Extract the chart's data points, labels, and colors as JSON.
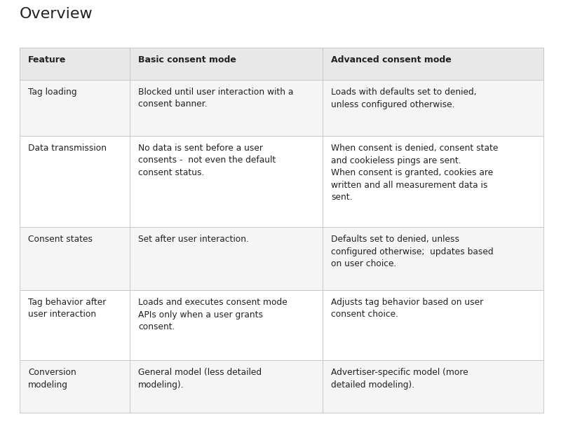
{
  "title": "Overview",
  "title_fontsize": 16,
  "background_color": "#ffffff",
  "header_bg": "#e8e8e8",
  "row_bg_odd": "#f5f5f5",
  "row_bg_even": "#ffffff",
  "border_color": "#c8c8c8",
  "text_color": "#222222",
  "header_fontsize": 9,
  "cell_fontsize": 8.8,
  "headers": [
    "Feature",
    "Basic consent mode",
    "Advanced consent mode"
  ],
  "rows": [
    {
      "feature": "Tag loading",
      "basic": "Blocked until user interaction with a\nconsent banner.",
      "advanced": "Loads with defaults set to denied,\nunless configured otherwise."
    },
    {
      "feature": "Data transmission",
      "basic": "No data is sent before a user\nconsents -  not even the default\nconsent status.",
      "advanced": "When consent is denied, consent state\nand cookieless pings are sent.\nWhen consent is granted, cookies are\nwritten and all measurement data is\nsent."
    },
    {
      "feature": "Consent states",
      "basic": "Set after user interaction.",
      "advanced": "Defaults set to denied, unless\nconfigured otherwise;  updates based\non user choice."
    },
    {
      "feature": "Tag behavior after\nuser interaction",
      "basic": "Loads and executes consent mode\nAPIs only when a user grants\nconsent.",
      "advanced": "Adjusts tag behavior based on user\nconsent choice."
    },
    {
      "feature": "Conversion\nmodeling",
      "basic": "General model (less detailed\nmodeling).",
      "advanced": "Advertiser-specific model (more\ndetailed modeling)."
    }
  ]
}
